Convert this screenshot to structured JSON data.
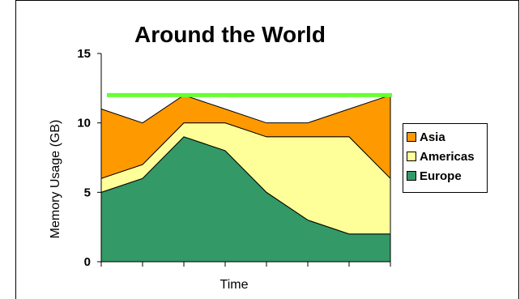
{
  "chart_data": {
    "type": "area",
    "stacked": true,
    "title": "Around the World",
    "xlabel": "Time",
    "ylabel": "Memory Usage (GB)",
    "ylim": [
      0,
      15
    ],
    "yticks": [
      "0",
      "5",
      "10",
      "15"
    ],
    "x": [
      1,
      2,
      3,
      4,
      5,
      6,
      7,
      8
    ],
    "series": [
      {
        "name": "Europe",
        "color": "#339966",
        "values": [
          5,
          6,
          9,
          8,
          5,
          3,
          2,
          2
        ]
      },
      {
        "name": "Americas",
        "color": "#ffff99",
        "values": [
          1,
          1,
          1,
          2,
          4,
          6,
          7,
          4
        ]
      },
      {
        "name": "Asia",
        "color": "#ff9900",
        "values": [
          5,
          3,
          2,
          1,
          1,
          1,
          2,
          6
        ]
      }
    ],
    "threshold": {
      "value": 12,
      "color": "#66ff33"
    },
    "legend": {
      "position": "right",
      "order": [
        "Asia",
        "Americas",
        "Europe"
      ]
    },
    "grid": false
  }
}
